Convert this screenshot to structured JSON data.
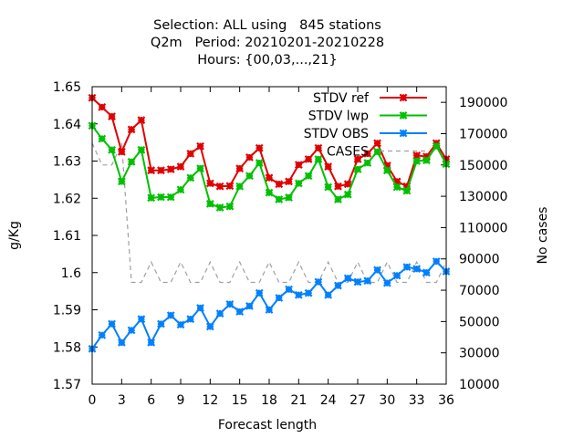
{
  "chart_data": {
    "type": "line",
    "title_lines": [
      "Selection: ALL using   845 stations",
      "Q2m   Period: 20210201-20210228",
      "Hours: {00,03,...,21}"
    ],
    "xlabel": "Forecast length",
    "ylabel": "g/Kg",
    "y2label": "No cases",
    "xlim": [
      0,
      36
    ],
    "ylim": [
      1.57,
      1.65
    ],
    "y2lim": [
      10000,
      200000
    ],
    "xticks": [
      "0",
      "3",
      "6",
      "9",
      "12",
      "15",
      "18",
      "21",
      "24",
      "27",
      "30",
      "33",
      "36"
    ],
    "yticks": [
      "1.57",
      "1.58",
      "1.59",
      "1.6",
      "1.61",
      "1.62",
      "1.63",
      "1.64",
      "1.65"
    ],
    "y2ticks": [
      "10000",
      "30000",
      "50000",
      "70000",
      "90000",
      "110000",
      "130000",
      "150000",
      "170000",
      "190000"
    ],
    "legend_position": "top-right",
    "x": [
      0,
      1,
      2,
      3,
      4,
      5,
      6,
      7,
      8,
      9,
      10,
      11,
      12,
      13,
      14,
      15,
      16,
      17,
      18,
      19,
      20,
      21,
      22,
      23,
      24,
      25,
      26,
      27,
      28,
      29,
      30,
      31,
      32,
      33,
      34,
      35,
      36
    ],
    "series": [
      {
        "name": "STDV ref",
        "color": "#e00000",
        "axis": "y",
        "values": [
          1.647,
          1.6445,
          1.642,
          1.6325,
          1.6385,
          1.641,
          1.6275,
          1.6275,
          1.6278,
          1.6285,
          1.632,
          1.634,
          1.624,
          1.6232,
          1.6233,
          1.628,
          1.631,
          1.6335,
          1.6255,
          1.6238,
          1.6245,
          1.629,
          1.6305,
          1.6335,
          1.6285,
          1.6232,
          1.6238,
          1.6305,
          1.632,
          1.6348,
          1.6288,
          1.6245,
          1.6232,
          1.6315,
          1.6312,
          1.6348,
          1.6305
        ]
      },
      {
        "name": "STDV lwp",
        "color": "#00c000",
        "axis": "y",
        "values": [
          1.6395,
          1.636,
          1.633,
          1.6245,
          1.6298,
          1.633,
          1.6201,
          1.6203,
          1.6203,
          1.6223,
          1.6255,
          1.628,
          1.6185,
          1.6175,
          1.6178,
          1.6232,
          1.626,
          1.6295,
          1.6215,
          1.6197,
          1.6202,
          1.624,
          1.626,
          1.6305,
          1.623,
          1.6197,
          1.621,
          1.6278,
          1.6295,
          1.6325,
          1.6275,
          1.623,
          1.622,
          1.63,
          1.6302,
          1.634,
          1.6292
        ]
      },
      {
        "name": "STDV OBS",
        "color": "#0080ff",
        "axis": "y",
        "values": [
          1.5795,
          1.5832,
          1.5862,
          1.5812,
          1.5845,
          1.5875,
          1.5812,
          1.5862,
          1.5885,
          1.586,
          1.5875,
          1.5905,
          1.5855,
          1.589,
          1.5915,
          1.5895,
          1.591,
          1.5945,
          1.59,
          1.5932,
          1.5955,
          1.594,
          1.5945,
          1.5975,
          1.594,
          1.5965,
          1.5985,
          1.5975,
          1.5978,
          1.6007,
          1.5972,
          1.5992,
          1.6015,
          1.601,
          1.6,
          1.603,
          1.6003
        ]
      },
      {
        "name": "CASES",
        "color": "#a0a0a0",
        "axis": "y2",
        "dashed": true,
        "values": [
          164000,
          150000,
          150000,
          164000,
          75000,
          75000,
          88000,
          75000,
          75000,
          88000,
          75000,
          75000,
          88000,
          75000,
          75000,
          88000,
          75000,
          75000,
          88000,
          75000,
          75000,
          88000,
          75000,
          75000,
          88000,
          75000,
          75000,
          88000,
          75000,
          75000,
          88000,
          75000,
          75000,
          88000,
          75000,
          75000,
          88000
        ]
      }
    ]
  }
}
